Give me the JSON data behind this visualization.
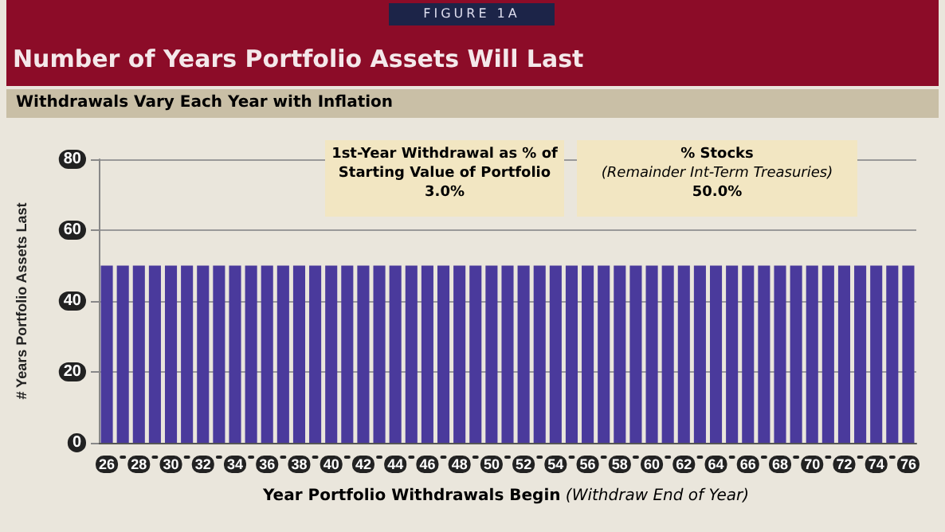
{
  "chart_data": {
    "type": "bar",
    "title": "Number of Years Portfolio Assets Will Last",
    "subtitle": "Withdrawals Vary Each Year with Inflation",
    "annotations": [
      "FIGURE 1A",
      "1st-Year Withdrawal as % of Starting Value of Portfolio\n3.0%",
      "% Stocks\n(Remainder Int-Term Treasuries)\n50.0%"
    ],
    "xlabel": "Year Portfolio Withdrawals Begin (Withdraw End of Year)",
    "ylabel": "# Years Portfolio Assets Last",
    "categories": [
      "26",
      null,
      "28",
      null,
      "30",
      null,
      "32",
      null,
      "34",
      null,
      "36",
      null,
      "38",
      null,
      "40",
      null,
      "42",
      null,
      "44",
      null,
      "46",
      null,
      "48",
      null,
      "50",
      null,
      "52",
      null,
      "54",
      null,
      "56",
      null,
      "58",
      null,
      "60",
      null,
      "62",
      null,
      "64",
      null,
      "66",
      null,
      "68",
      null,
      "70",
      null,
      "72",
      null,
      "74",
      null,
      "76"
    ],
    "values": [
      50,
      50,
      50,
      50,
      50,
      50,
      50,
      50,
      50,
      50,
      50,
      50,
      50,
      50,
      50,
      50,
      50,
      50,
      50,
      50,
      50,
      50,
      50,
      50,
      50,
      50,
      50,
      50,
      50,
      50,
      50,
      50,
      50,
      50,
      50,
      50,
      50,
      50,
      50,
      50,
      50,
      50,
      50,
      50,
      50,
      50,
      50,
      50,
      50,
      50,
      50
    ],
    "color": "#4a3a9c",
    "ylim": [
      0,
      80
    ],
    "yticks": [
      0,
      20,
      40,
      60,
      80
    ],
    "grid": "y"
  }
}
